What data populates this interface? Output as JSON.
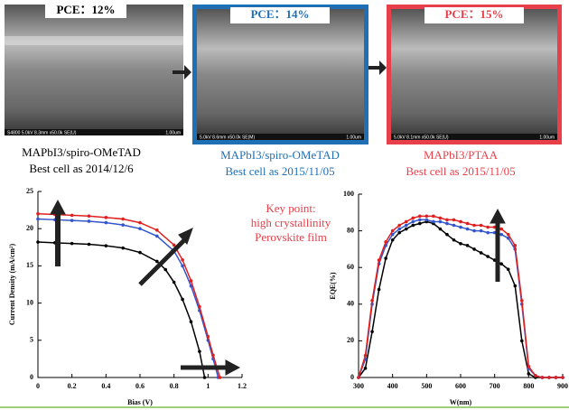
{
  "images": [
    {
      "pce": "PCE：12%",
      "info": "S4800 5.0kV 8.3mm x50.0k SE(U)",
      "scale": "1.00um",
      "material": "MAPbI3/spiro-OMeTAD",
      "best": "Best cell as 2014/12/6"
    },
    {
      "pce": "PCE：14%",
      "info": "5.0kV 8.6mm x50.0k SE(M)",
      "scale": "1.00um",
      "material": "MAPbI3/spiro-OMeTAD",
      "best": "Best cell as 2015/11/05"
    },
    {
      "pce": "PCE：15%",
      "info": "5.0kV 8.1mm x50.0k SE(U)",
      "scale": "1.00um",
      "material": "MAPbI3/PTAA",
      "best": "Best cell as 2015/11/05"
    }
  ],
  "key_point": [
    "Key point:",
    "high crystallinity",
    "Perovskite film"
  ],
  "chart_data": [
    {
      "type": "line",
      "xlabel": "Bias (V)",
      "ylabel": "Current Density (mA/cm²)",
      "xlim": [
        0,
        1.2
      ],
      "ylim": [
        0,
        25
      ],
      "xticks": [
        0,
        0.2,
        0.4,
        0.6,
        0.8,
        1,
        1.2
      ],
      "yticks": [
        0,
        5,
        10,
        15,
        20,
        25
      ],
      "markers": true,
      "series": [
        {
          "color": "#000000",
          "x": [
            0,
            0.1,
            0.2,
            0.3,
            0.4,
            0.5,
            0.6,
            0.7,
            0.75,
            0.8,
            0.85,
            0.9,
            0.95,
            0.98
          ],
          "values": [
            18.2,
            18.1,
            18.0,
            17.9,
            17.7,
            17.4,
            16.8,
            15.6,
            14.5,
            12.8,
            10.5,
            7.5,
            3.5,
            0
          ]
        },
        {
          "color": "#3355cc",
          "x": [
            0,
            0.1,
            0.2,
            0.3,
            0.4,
            0.5,
            0.6,
            0.7,
            0.8,
            0.85,
            0.9,
            0.95,
            1.0,
            1.03,
            1.06
          ],
          "values": [
            21.3,
            21.2,
            21.1,
            21.0,
            20.8,
            20.5,
            20.0,
            19.0,
            17.0,
            15.0,
            12.3,
            9.0,
            5.0,
            2.5,
            0
          ]
        },
        {
          "color": "#e02020",
          "x": [
            0,
            0.1,
            0.2,
            0.3,
            0.4,
            0.5,
            0.6,
            0.7,
            0.8,
            0.85,
            0.9,
            0.95,
            1.0,
            1.03,
            1.07
          ],
          "values": [
            22.0,
            21.9,
            21.8,
            21.7,
            21.5,
            21.3,
            20.8,
            19.8,
            17.8,
            15.8,
            13.0,
            9.5,
            5.5,
            3.0,
            0
          ]
        }
      ]
    },
    {
      "type": "line",
      "xlabel": "W(nm)",
      "ylabel": "EQE(%)",
      "xlim": [
        300,
        900
      ],
      "ylim": [
        0,
        100
      ],
      "xticks": [
        300,
        400,
        500,
        600,
        700,
        800,
        900
      ],
      "yticks": [
        0,
        20,
        40,
        60,
        80,
        100
      ],
      "markers": true,
      "series": [
        {
          "color": "#000000",
          "x": [
            300,
            320,
            340,
            360,
            380,
            400,
            420,
            440,
            460,
            480,
            500,
            520,
            540,
            560,
            580,
            600,
            620,
            640,
            660,
            680,
            700,
            720,
            740,
            760,
            780,
            800,
            820,
            840,
            860,
            880,
            900
          ],
          "values": [
            0,
            5,
            25,
            48,
            65,
            75,
            79,
            81,
            83,
            84,
            85,
            84,
            81,
            78,
            75,
            73,
            72,
            70,
            68,
            66,
            64,
            62,
            59,
            50,
            20,
            2,
            0,
            0,
            0,
            0,
            0
          ]
        },
        {
          "color": "#3355cc",
          "x": [
            300,
            320,
            340,
            360,
            380,
            400,
            420,
            440,
            460,
            480,
            500,
            520,
            540,
            560,
            580,
            600,
            620,
            640,
            660,
            680,
            700,
            720,
            740,
            760,
            780,
            800,
            820,
            840,
            860,
            880,
            900
          ],
          "values": [
            0,
            10,
            40,
            62,
            72,
            78,
            81,
            83,
            85,
            86,
            86,
            85,
            85,
            84,
            83,
            82,
            81,
            80,
            80,
            79,
            79,
            78,
            76,
            70,
            40,
            5,
            1,
            0,
            0,
            0,
            0
          ]
        },
        {
          "color": "#e02020",
          "x": [
            300,
            320,
            340,
            360,
            380,
            400,
            420,
            440,
            460,
            480,
            500,
            520,
            540,
            560,
            580,
            600,
            620,
            640,
            660,
            680,
            700,
            720,
            740,
            760,
            780,
            800,
            820,
            840,
            860,
            880,
            900
          ],
          "values": [
            0,
            12,
            42,
            64,
            74,
            80,
            83,
            85,
            87,
            88,
            88,
            88,
            87,
            86,
            86,
            85,
            84,
            83,
            83,
            82,
            82,
            81,
            78,
            72,
            42,
            6,
            1,
            0,
            0,
            0,
            0
          ]
        }
      ]
    }
  ]
}
